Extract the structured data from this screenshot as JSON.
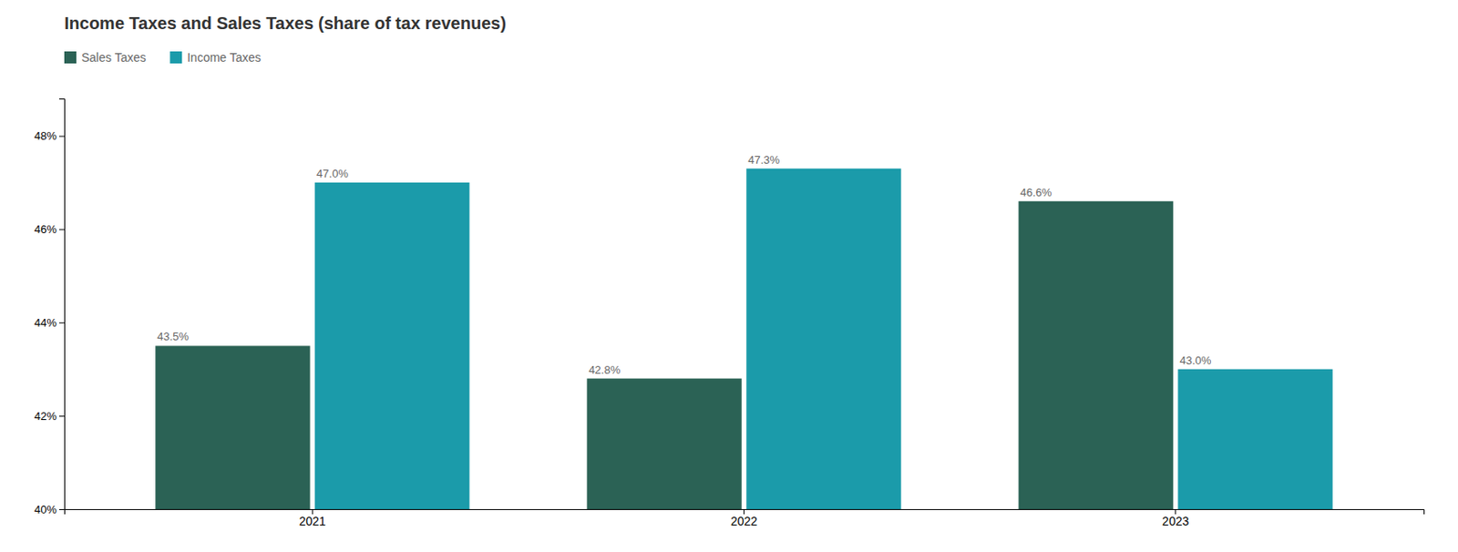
{
  "chart_data": {
    "type": "bar",
    "title": "Income Taxes and Sales Taxes (share of tax revenues)",
    "categories": [
      "2021",
      "2022",
      "2023"
    ],
    "series": [
      {
        "name": "Sales Taxes",
        "color": "#2b6255",
        "values": [
          43.5,
          42.8,
          46.6
        ],
        "value_labels": [
          "43.5%",
          "42.8%",
          "46.6%"
        ]
      },
      {
        "name": "Income Taxes",
        "color": "#1b9baa",
        "values": [
          47.0,
          47.3,
          43.0
        ],
        "value_labels": [
          "47.0%",
          "47.3%",
          "43.0%"
        ]
      }
    ],
    "ylim": [
      40,
      48.8
    ],
    "yticks": [
      {
        "value": 40,
        "label": "40%"
      },
      {
        "value": 42,
        "label": "42%"
      },
      {
        "value": 44,
        "label": "44%"
      },
      {
        "value": 46,
        "label": "46%"
      },
      {
        "value": 48,
        "label": "48%"
      }
    ],
    "data_labels": true,
    "legend": "upper left",
    "grid": false
  }
}
